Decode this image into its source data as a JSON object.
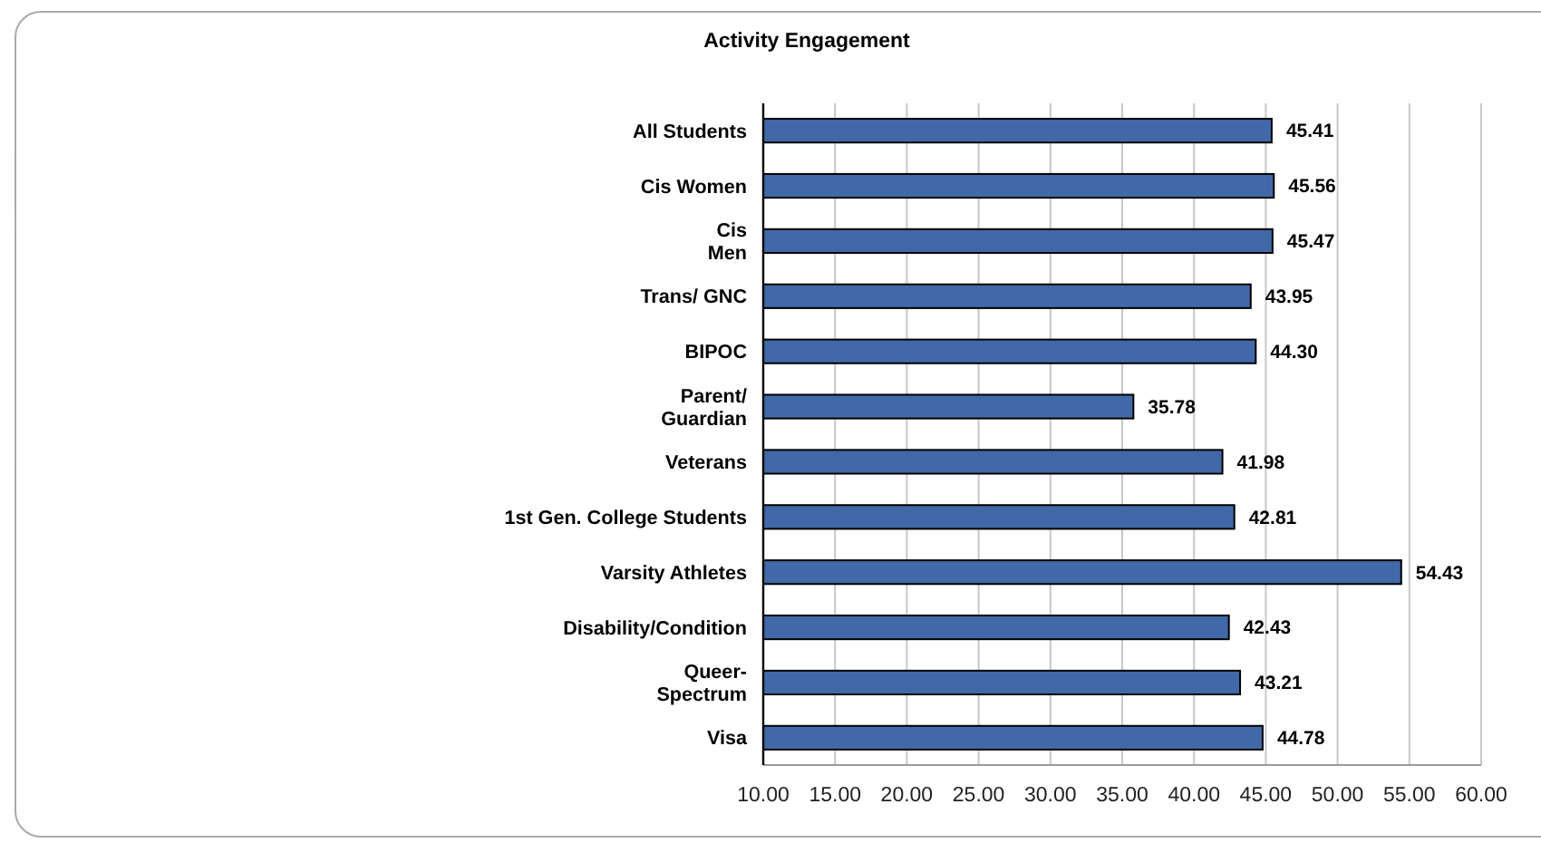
{
  "chart_data": {
    "type": "bar",
    "orientation": "horizontal",
    "title": "Activity Engagement",
    "categories": [
      "All Students",
      "Cis Women",
      "Cis\nMen",
      "Trans/ GNC",
      "BIPOC",
      "Parent/\nGuardian",
      "Veterans",
      "1st Gen. College Students",
      "Varsity Athletes",
      "Disability/Condition",
      "Queer-\nSpectrum",
      "Visa"
    ],
    "values": [
      45.41,
      45.56,
      45.47,
      43.95,
      44.3,
      35.78,
      41.98,
      42.81,
      54.43,
      42.43,
      43.21,
      44.78
    ],
    "value_labels": [
      "45.41",
      "45.56",
      "45.47",
      "43.95",
      "44.30",
      "35.78",
      "41.98",
      "42.81",
      "54.43",
      "42.43",
      "43.21",
      "44.78"
    ],
    "color": "#4169a8",
    "xlim": [
      10,
      60
    ],
    "xticks": [
      {
        "value": 10,
        "label": "10.00"
      },
      {
        "value": 15,
        "label": "15.00"
      },
      {
        "value": 20,
        "label": "20.00"
      },
      {
        "value": 25,
        "label": "25.00"
      },
      {
        "value": 30,
        "label": "30.00"
      },
      {
        "value": 35,
        "label": "35.00"
      },
      {
        "value": 40,
        "label": "40.00"
      },
      {
        "value": 45,
        "label": "45.00"
      },
      {
        "value": 50,
        "label": "50.00"
      },
      {
        "value": 55,
        "label": "55.00"
      },
      {
        "value": 60,
        "label": "60.00"
      }
    ],
    "grid": "x"
  }
}
